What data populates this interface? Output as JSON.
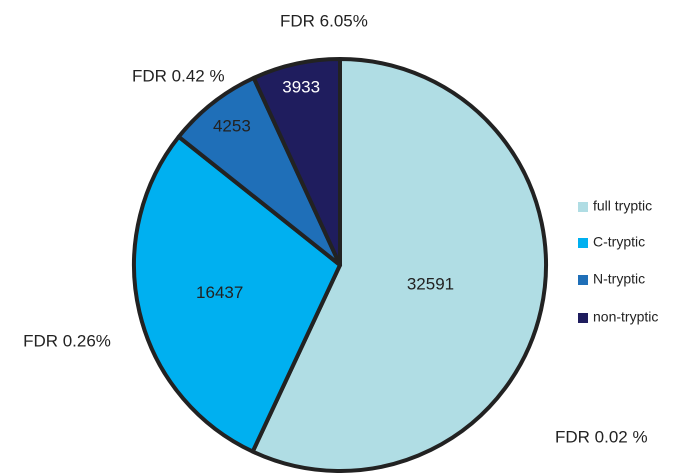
{
  "chart_data": {
    "type": "pie",
    "categories": [
      "full tryptic",
      "C-tryptic",
      "N-tryptic",
      "non-tryptic"
    ],
    "values": [
      32591,
      16437,
      4253,
      3933
    ],
    "colors": [
      "#b0dde4",
      "#00b0f0",
      "#1f6fb8",
      "#1f1d5e"
    ],
    "annotations": [
      "FDR 0.02 %",
      "FDR 0.26%",
      "FDR 0.42 %",
      "FDR 6.05%"
    ],
    "legend": "right"
  }
}
